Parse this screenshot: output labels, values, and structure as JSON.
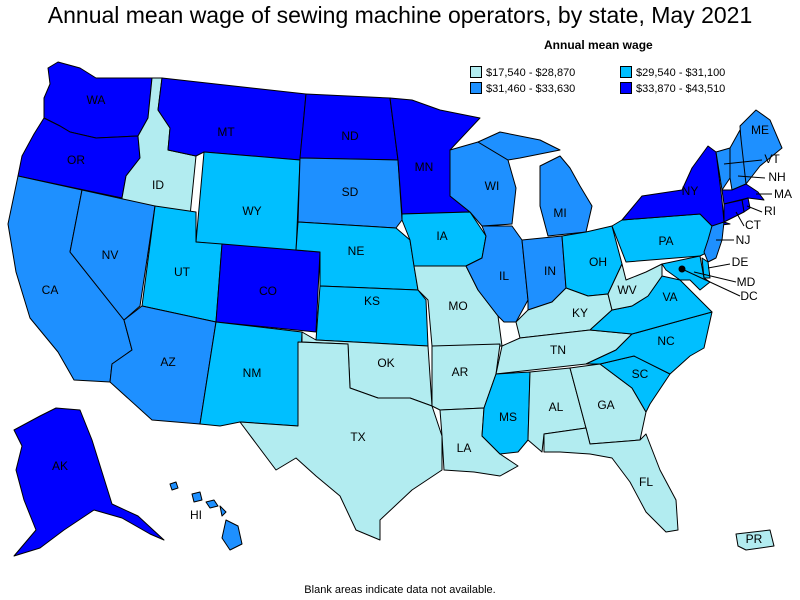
{
  "title": "Annual mean wage of sewing machine operators, by state, May 2021",
  "legend": {
    "title": "Annual mean wage",
    "items": [
      {
        "label": "$17,540 - $28,870",
        "color": "#b2ecf0"
      },
      {
        "label": "$29,540 - $31,100",
        "color": "#00bfff"
      },
      {
        "label": "$31,460 - $33,630",
        "color": "#1e90ff"
      },
      {
        "label": "$33,870 - $43,510",
        "color": "#0000ff"
      }
    ]
  },
  "footnote": "Blank areas indicate data not available.",
  "states": {
    "WA": {
      "label": "WA",
      "bin": 3
    },
    "OR": {
      "label": "OR",
      "bin": 3
    },
    "CA": {
      "label": "CA",
      "bin": 2
    },
    "ID": {
      "label": "ID",
      "bin": 0
    },
    "NV": {
      "label": "NV",
      "bin": 2
    },
    "MT": {
      "label": "MT",
      "bin": 3
    },
    "WY": {
      "label": "WY",
      "bin": 1
    },
    "UT": {
      "label": "UT",
      "bin": 1
    },
    "AZ": {
      "label": "AZ",
      "bin": 2
    },
    "CO": {
      "label": "CO",
      "bin": 3
    },
    "NM": {
      "label": "NM",
      "bin": 1
    },
    "ND": {
      "label": "ND",
      "bin": 3
    },
    "SD": {
      "label": "SD",
      "bin": 2
    },
    "NE": {
      "label": "NE",
      "bin": 1
    },
    "KS": {
      "label": "KS",
      "bin": 1
    },
    "OK": {
      "label": "OK",
      "bin": 0
    },
    "TX": {
      "label": "TX",
      "bin": 0
    },
    "MN": {
      "label": "MN",
      "bin": 3
    },
    "IA": {
      "label": "IA",
      "bin": 1
    },
    "MO": {
      "label": "MO",
      "bin": 0
    },
    "AR": {
      "label": "AR",
      "bin": 0
    },
    "LA": {
      "label": "LA",
      "bin": 0
    },
    "WI": {
      "label": "WI",
      "bin": 2
    },
    "IL": {
      "label": "IL",
      "bin": 2
    },
    "MI": {
      "label": "MI",
      "bin": 2
    },
    "IN": {
      "label": "IN",
      "bin": 2
    },
    "OH": {
      "label": "OH",
      "bin": 1
    },
    "KY": {
      "label": "KY",
      "bin": 0
    },
    "TN": {
      "label": "TN",
      "bin": 0
    },
    "MS": {
      "label": "MS",
      "bin": 1
    },
    "AL": {
      "label": "AL",
      "bin": 0
    },
    "GA": {
      "label": "GA",
      "bin": 0
    },
    "FL": {
      "label": "FL",
      "bin": 0
    },
    "SC": {
      "label": "SC",
      "bin": 1
    },
    "NC": {
      "label": "NC",
      "bin": 1
    },
    "VA": {
      "label": "VA",
      "bin": 1
    },
    "WV": {
      "label": "WV",
      "bin": 0
    },
    "PA": {
      "label": "PA",
      "bin": 1
    },
    "NY": {
      "label": "NY",
      "bin": 3
    },
    "ME": {
      "label": "ME",
      "bin": 2
    },
    "VT": {
      "label": "VT",
      "bin": 2
    },
    "NH": {
      "label": "NH",
      "bin": 2
    },
    "MA": {
      "label": "MA",
      "bin": 3
    },
    "RI": {
      "label": "RI",
      "bin": 3
    },
    "CT": {
      "label": "CT",
      "bin": 3
    },
    "NJ": {
      "label": "NJ",
      "bin": 2
    },
    "DE": {
      "label": "DE",
      "bin": 1
    },
    "MD": {
      "label": "MD",
      "bin": 1
    },
    "DC": {
      "label": "DC",
      "bin": 0
    },
    "AK": {
      "label": "AK",
      "bin": 3
    },
    "HI": {
      "label": "HI",
      "bin": 2
    },
    "PR": {
      "label": "PR",
      "bin": 0
    }
  }
}
